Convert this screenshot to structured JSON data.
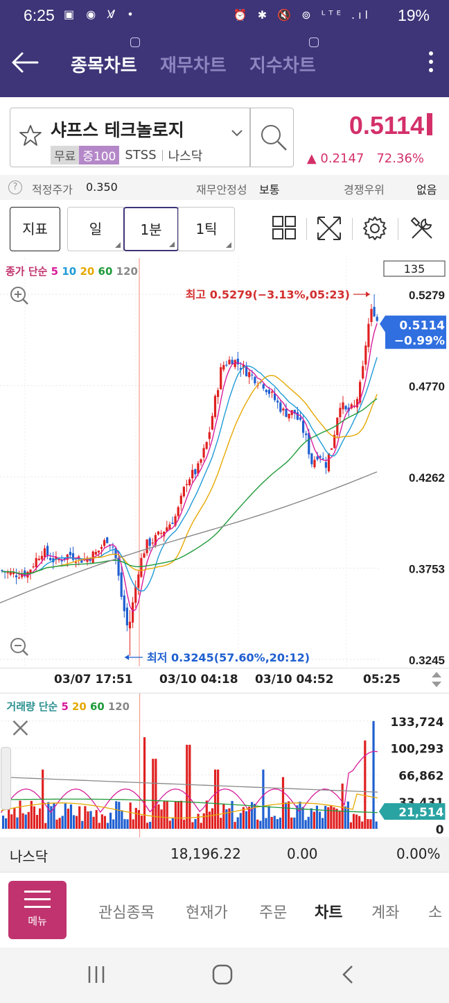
{
  "status_bar": {
    "time": "6:25",
    "left_icons": "▣ ◉ V̸ •",
    "right_icons": "⏰ ✱ 🔇 ⊚ ᴸᵀᴱ .ıl",
    "battery": "19%"
  },
  "header": {
    "tabs": [
      {
        "label": "종목차트",
        "active": true
      },
      {
        "label": "재무차트",
        "active": false
      },
      {
        "label": "지수차트",
        "active": false
      }
    ]
  },
  "stock": {
    "name": "샤프스 테크놀로지",
    "tag1": "무료",
    "tag2": "증100",
    "ticker": "STSS",
    "market": "나스닥",
    "price": "0.5114",
    "change": "▲ 0.2147",
    "change_pct": "72.36%"
  },
  "info": {
    "fair_label": "적정주가",
    "fair_value": "0.350",
    "fin_label": "재무안정성",
    "fin_value": "보통",
    "comp_label": "경쟁우위",
    "comp_value": "없음"
  },
  "toolbar": {
    "indicator": "지표",
    "day": "일",
    "minute": "1분",
    "tick": "1틱"
  },
  "chart": {
    "legend_label": "종가 단순",
    "ma": [
      {
        "p": "5",
        "color": "#d81b9b"
      },
      {
        "p": "10",
        "color": "#1e9ad6"
      },
      {
        "p": "20",
        "color": "#e5a800"
      },
      {
        "p": "60",
        "color": "#1f9a3a"
      },
      {
        "p": "120",
        "color": "#888888"
      }
    ],
    "count_box": "135",
    "high_label": "최고 0.5279(−3.13%,05:23)",
    "low_label": "최저 0.3245(57.60%,20:12)",
    "price_tag": "0.5114",
    "price_tag_pct": "−0.99%",
    "x_labels": [
      "03/07 17:51",
      "03/10 04:18",
      "03/10 04:52",
      "05:25"
    ],
    "colors": {
      "up": "#e02020",
      "down": "#1f5fd0",
      "accent": "#3d3578"
    }
  },
  "chart_data": {
    "type": "candlestick",
    "y_ticks": [
      "0.5279",
      "0.4770",
      "0.4262",
      "0.3753",
      "0.3245"
    ],
    "y_range": [
      0.3245,
      0.5279
    ],
    "current": 0.5114,
    "high": 0.5279,
    "low": 0.3245
  },
  "volume": {
    "legend_label": "거래량 단순",
    "ma": [
      {
        "p": "5",
        "color": "#d81b9b"
      },
      {
        "p": "20",
        "color": "#e5a800"
      },
      {
        "p": "60",
        "color": "#1f9a3a"
      },
      {
        "p": "120",
        "color": "#888888"
      }
    ],
    "y_ticks": [
      "133,724",
      "100,293",
      "66,862",
      "33,431",
      "0"
    ],
    "current": "21,514"
  },
  "index_bar": {
    "name": "나스닥",
    "value": "18,196.22",
    "change": "0.00",
    "pct": "0.00%"
  },
  "bottom_nav": {
    "menu": "메뉴",
    "items": [
      {
        "label": "관심종목"
      },
      {
        "label": "현재가"
      },
      {
        "label": "주문"
      },
      {
        "label": "차트",
        "active": true
      },
      {
        "label": "계좌"
      },
      {
        "label": "소"
      }
    ]
  }
}
